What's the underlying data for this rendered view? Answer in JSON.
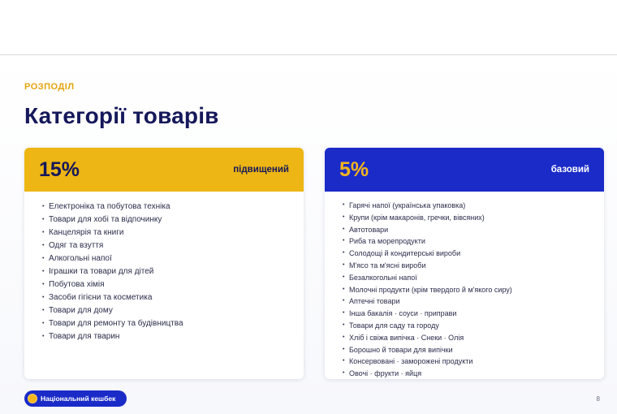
{
  "slide": {
    "kicker": "РОЗПОДІЛ",
    "title": "Категорії товарів",
    "page_number": "8"
  },
  "cards": {
    "increased": {
      "percent": "15%",
      "label": "підвищений",
      "color": "#edb614",
      "items": [
        "Електроніка та побутова техніка",
        "Товари для хобі та відпочинку",
        "Канцелярія та книги",
        "Одяг та взуття",
        "Алкогольні напої",
        "Іграшки та товари для дітей",
        "Побутова хімія",
        "Засоби гігієни та косметика",
        "Товари для дому",
        "Товари для ремонту та будівництва",
        "Товари для тварин"
      ]
    },
    "base": {
      "percent": "5%",
      "label": "базовий",
      "color": "#1a2bc8",
      "items": [
        "Гарячі напої (українська упаковка)",
        "Крупи (крім макаронів, гречки, вівсяних)",
        "Автотовари",
        "Риба та морепродукти",
        "Солодощі й кондитерські вироби",
        "М'ясо та м'ясні вироби",
        "Безалкогольні напої",
        "Молочні продукти (крім твердого й м'якого сиру)",
        "Аптечні товари",
        "Інша бакалія · соуси · приправи",
        "Товари для саду та городу",
        "Хліб і свіжа випічка · Снеки · Олія",
        "Борошно й товари для випічки",
        "Консервовані · заморожені продукти",
        "Овочі · фрукти · яйця"
      ]
    }
  },
  "badge": {
    "label": "Національний кешбек",
    "icon": "coin-icon"
  }
}
